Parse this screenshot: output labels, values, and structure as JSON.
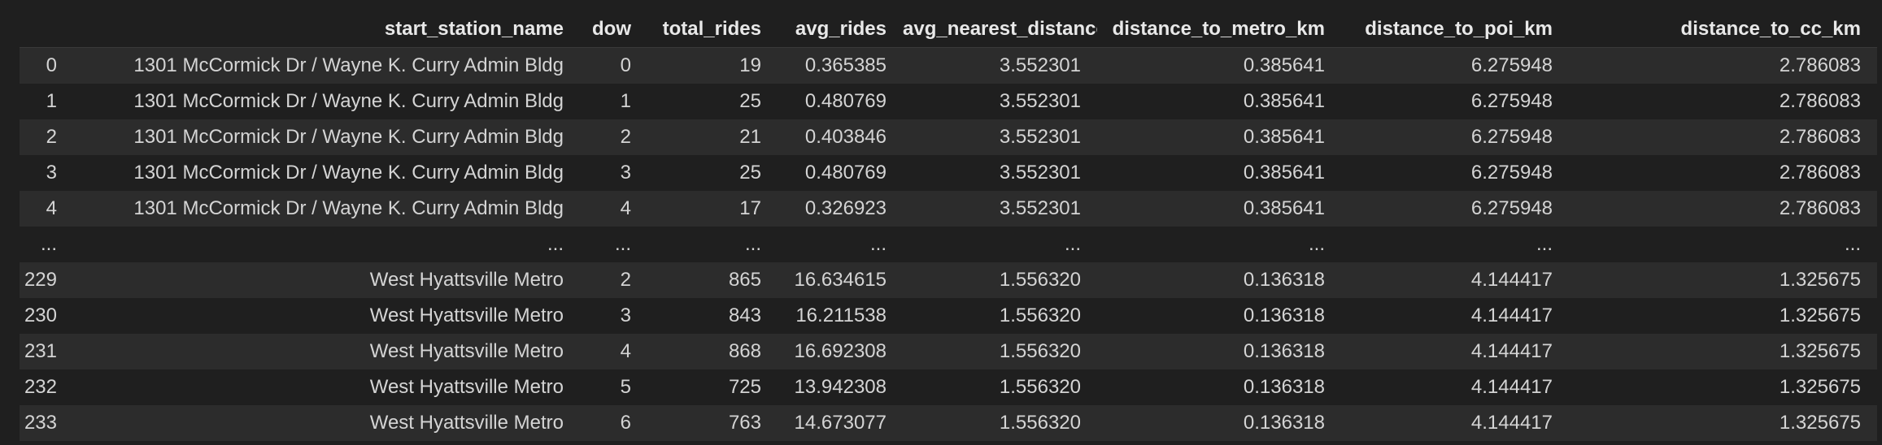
{
  "columns": [
    "",
    "start_station_name",
    "dow",
    "total_rides",
    "avg_rides",
    "avg_nearest_distance_km",
    "distance_to_metro_km",
    "distance_to_poi_km",
    "distance_to_cc_km"
  ],
  "rows": [
    [
      "0",
      "1301 McCormick Dr / Wayne K. Curry Admin Bldg",
      "0",
      "19",
      "0.365385",
      "3.552301",
      "0.385641",
      "6.275948",
      "2.786083"
    ],
    [
      "1",
      "1301 McCormick Dr / Wayne K. Curry Admin Bldg",
      "1",
      "25",
      "0.480769",
      "3.552301",
      "0.385641",
      "6.275948",
      "2.786083"
    ],
    [
      "2",
      "1301 McCormick Dr / Wayne K. Curry Admin Bldg",
      "2",
      "21",
      "0.403846",
      "3.552301",
      "0.385641",
      "6.275948",
      "2.786083"
    ],
    [
      "3",
      "1301 McCormick Dr / Wayne K. Curry Admin Bldg",
      "3",
      "25",
      "0.480769",
      "3.552301",
      "0.385641",
      "6.275948",
      "2.786083"
    ],
    [
      "4",
      "1301 McCormick Dr / Wayne K. Curry Admin Bldg",
      "4",
      "17",
      "0.326923",
      "3.552301",
      "0.385641",
      "6.275948",
      "2.786083"
    ],
    [
      "...",
      "...",
      "...",
      "...",
      "...",
      "...",
      "...",
      "...",
      "..."
    ],
    [
      "229",
      "West Hyattsville Metro",
      "2",
      "865",
      "16.634615",
      "1.556320",
      "0.136318",
      "4.144417",
      "1.325675"
    ],
    [
      "230",
      "West Hyattsville Metro",
      "3",
      "843",
      "16.211538",
      "1.556320",
      "0.136318",
      "4.144417",
      "1.325675"
    ],
    [
      "231",
      "West Hyattsville Metro",
      "4",
      "868",
      "16.692308",
      "1.556320",
      "0.136318",
      "4.144417",
      "1.325675"
    ],
    [
      "232",
      "West Hyattsville Metro",
      "5",
      "725",
      "13.942308",
      "1.556320",
      "0.136318",
      "4.144417",
      "1.325675"
    ],
    [
      "233",
      "West Hyattsville Metro",
      "6",
      "763",
      "14.673077",
      "1.556320",
      "0.136318",
      "4.144417",
      "1.325675"
    ]
  ]
}
